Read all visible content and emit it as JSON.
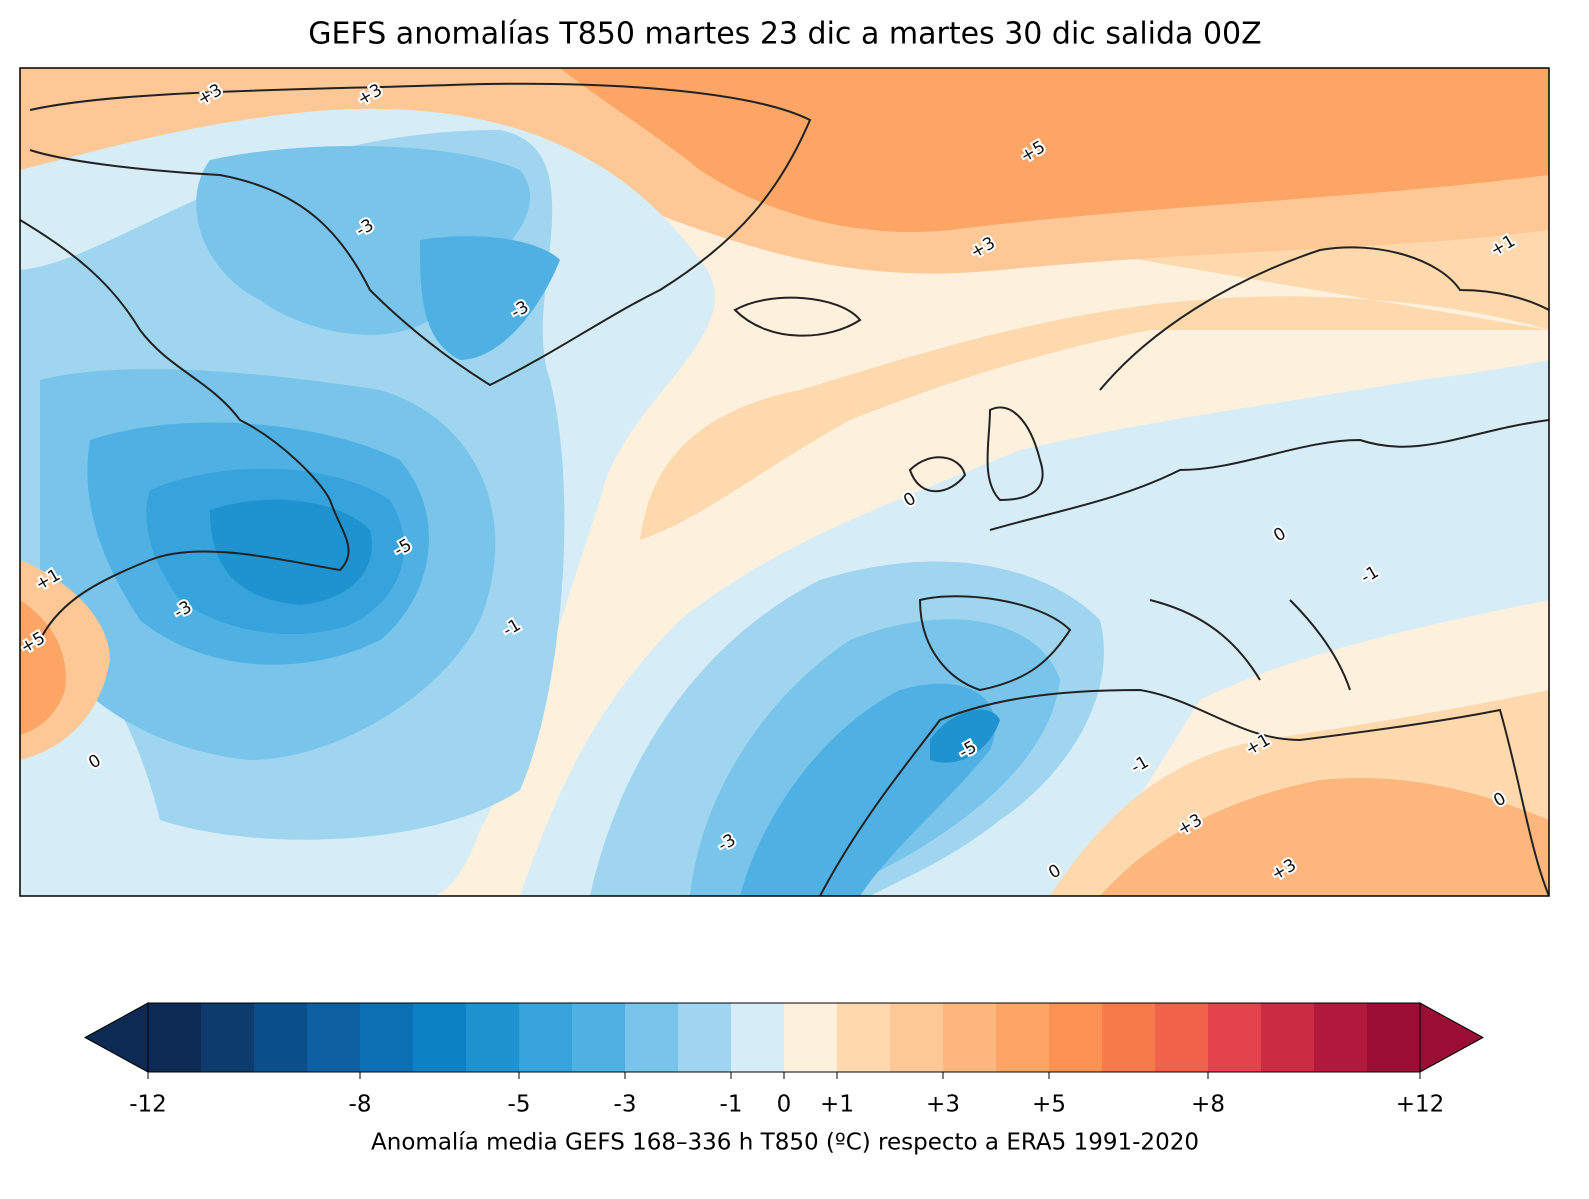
{
  "title": "GEFS anomalías T850 martes 23 dic a martes 30 dic salida 00Z",
  "map": {
    "contour_labels": [
      "+3",
      "+3",
      "+5",
      "+3",
      "+1",
      "-3",
      "-3",
      "-5",
      "-3",
      "-1",
      "0",
      "+1",
      "+5",
      "-3",
      "-5",
      "0",
      "0",
      "-1",
      "-1",
      "+1",
      "+3",
      "+3",
      "0",
      "0"
    ]
  },
  "colorbar": {
    "clim": [
      -12,
      12
    ],
    "colors": [
      "#0d2a55",
      "#0d3b6e",
      "#0a4f8c",
      "#0c5fa0",
      "#0b70b3",
      "#0c82c4",
      "#1f93d0",
      "#36a3dc",
      "#4fb1e3",
      "#78c4eb",
      "#a0d5f0",
      "#d6ecf7",
      "#fdf0dc",
      "#fdd9ad",
      "#fdc895",
      "#fdb77c",
      "#fca565",
      "#fb9153",
      "#f77a4a",
      "#f06249",
      "#e3434a",
      "#cc2b44",
      "#b3193c",
      "#9a0d35"
    ],
    "ticks": [
      -12,
      -8,
      -5,
      -3,
      -1,
      0,
      {
        "value": 1,
        "label": "+1"
      },
      {
        "value": 3,
        "label": "+3"
      },
      {
        "value": 5,
        "label": "+5"
      },
      {
        "value": 8,
        "label": "+8"
      },
      {
        "value": 12,
        "label": "+12"
      }
    ],
    "label": "Anomalía media GEFS 168–336 h T850 (ºC) respecto a ERA5 1991-2020"
  }
}
